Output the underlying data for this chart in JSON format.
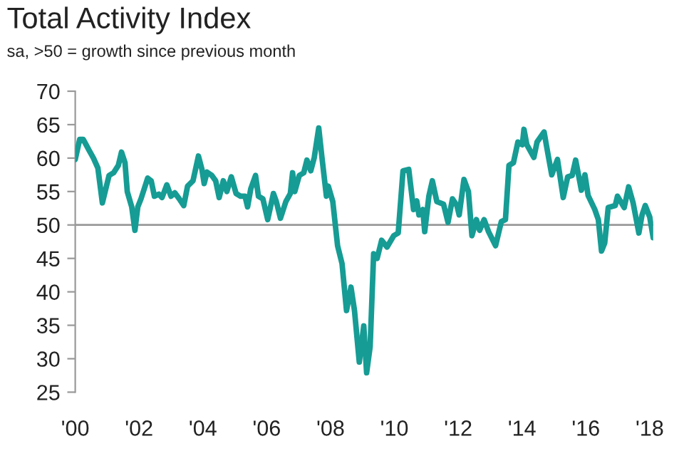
{
  "chart_data": {
    "type": "line",
    "title": "Total Activity Index",
    "subtitle": "sa, >50 = growth since previous month",
    "x": [
      2000.0,
      2000.14,
      2000.25,
      2000.43,
      2000.57,
      2000.71,
      2000.85,
      2001.06,
      2001.2,
      2001.35,
      2001.45,
      2001.56,
      2001.63,
      2001.77,
      2001.87,
      2001.96,
      2002.06,
      2002.27,
      2002.38,
      2002.48,
      2002.62,
      2002.72,
      2002.87,
      2003.0,
      2003.12,
      2003.26,
      2003.4,
      2003.52,
      2003.69,
      2003.86,
      2003.97,
      2004.04,
      2004.13,
      2004.28,
      2004.4,
      2004.51,
      2004.64,
      2004.75,
      2004.89,
      2005.04,
      2005.18,
      2005.32,
      2005.4,
      2005.5,
      2005.65,
      2005.74,
      2005.88,
      2006.03,
      2006.21,
      2006.3,
      2006.43,
      2006.6,
      2006.74,
      2006.81,
      2006.88,
      2007.02,
      2007.16,
      2007.26,
      2007.38,
      2007.49,
      2007.63,
      2007.73,
      2007.87,
      2007.93,
      2008.07,
      2008.22,
      2008.36,
      2008.5,
      2008.64,
      2008.75,
      2008.9,
      2009.04,
      2009.13,
      2009.24,
      2009.35,
      2009.46,
      2009.6,
      2009.77,
      2009.98,
      2010.12,
      2010.27,
      2010.45,
      2010.6,
      2010.7,
      2010.77,
      2010.89,
      2010.95,
      2011.08,
      2011.19,
      2011.33,
      2011.54,
      2011.68,
      2011.82,
      2011.96,
      2012.03,
      2012.18,
      2012.32,
      2012.43,
      2012.57,
      2012.67,
      2012.81,
      2012.95,
      2013.17,
      2013.35,
      2013.48,
      2013.59,
      2013.73,
      2013.87,
      2014.01,
      2014.06,
      2014.15,
      2014.37,
      2014.47,
      2014.69,
      2014.79,
      2014.93,
      2015.11,
      2015.29,
      2015.43,
      2015.57,
      2015.68,
      2015.86,
      2015.97,
      2016.07,
      2016.28,
      2016.39,
      2016.49,
      2016.59,
      2016.7,
      2016.92,
      2016.99,
      2017.2,
      2017.34,
      2017.48,
      2017.66,
      2017.76,
      2017.86,
      2018.0,
      2018.11
    ],
    "series": [
      {
        "color": "#169c94",
        "values": [
          59.8,
          62.8,
          62.8,
          61.2,
          60,
          58.5,
          53.3,
          57.4,
          57.8,
          58.9,
          60.9,
          59.3,
          55,
          52.7,
          49.2,
          52.7,
          53.9,
          57,
          56.6,
          54.3,
          54.6,
          54.1,
          56,
          54.3,
          54.8,
          53.9,
          52.9,
          55.8,
          56.6,
          60.3,
          58.3,
          56.2,
          57.9,
          57.4,
          56.6,
          54.1,
          56.6,
          55,
          57.2,
          54.7,
          54.3,
          54.3,
          52.7,
          55.4,
          57.4,
          54.3,
          53.9,
          50.8,
          54.7,
          53.5,
          51,
          53.5,
          54.7,
          57.8,
          55,
          57.4,
          57.8,
          59.7,
          58.1,
          60.1,
          64.5,
          60.1,
          54.3,
          55.8,
          53.5,
          46.9,
          44.2,
          37.2,
          40.7,
          37.2,
          29.5,
          34.9,
          27.9,
          31.8,
          45.7,
          45,
          47.7,
          46.7,
          48.4,
          48.8,
          58.1,
          58.3,
          52.3,
          53.6,
          51.5,
          52.3,
          49,
          54.3,
          56.6,
          53.5,
          53.1,
          50.4,
          53.9,
          52.9,
          51.5,
          56.8,
          55,
          48.4,
          50.8,
          49.2,
          50.8,
          49,
          46.9,
          50.5,
          50.8,
          58.9,
          59.3,
          62.4,
          62,
          64.3,
          62,
          60.1,
          62.4,
          63.9,
          61.2,
          57.5,
          59.8,
          54.1,
          57.2,
          57.4,
          59.7,
          55.2,
          57.5,
          54.4,
          52.3,
          50.8,
          46.1,
          47.3,
          52.6,
          52.9,
          54.3,
          52.6,
          55.7,
          53.3,
          48.8,
          51.5,
          52.9,
          51.2,
          48.1
        ]
      }
    ],
    "xlim": [
      2000,
      2018.11
    ],
    "ylim": [
      25,
      70
    ],
    "xticks": [
      {
        "value": 2000,
        "label": "'00"
      },
      {
        "value": 2002,
        "label": "'02"
      },
      {
        "value": 2004,
        "label": "'04"
      },
      {
        "value": 2006,
        "label": "'06"
      },
      {
        "value": 2008,
        "label": "'08"
      },
      {
        "value": 2010,
        "label": "'10"
      },
      {
        "value": 2012,
        "label": "'12"
      },
      {
        "value": 2014,
        "label": "'14"
      },
      {
        "value": 2016,
        "label": "'16"
      },
      {
        "value": 2018,
        "label": "'18"
      }
    ],
    "yticks": [
      25,
      30,
      35,
      40,
      45,
      50,
      55,
      60,
      65,
      70
    ],
    "ref_lines": [
      {
        "axis": "y",
        "value": 50,
        "color": "#999999"
      }
    ],
    "grid": false,
    "marker": "none",
    "line_style": "solid"
  }
}
